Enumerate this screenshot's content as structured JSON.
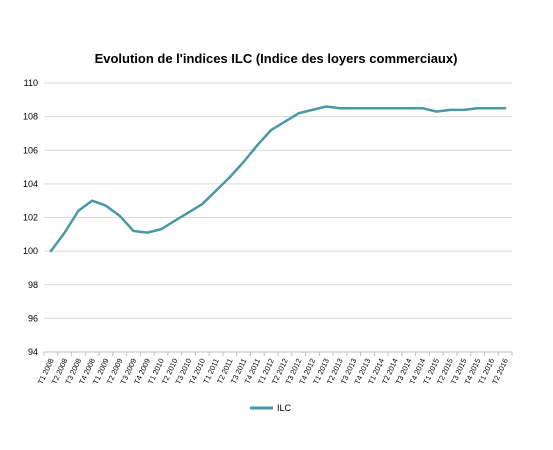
{
  "chart_data": {
    "type": "line",
    "title": "Evolution de l'indices ILC (Indice des loyers commerciaux)",
    "xlabel": "",
    "ylabel": "",
    "ylim": [
      94,
      110
    ],
    "yticks": [
      94,
      96,
      98,
      100,
      102,
      104,
      106,
      108,
      110
    ],
    "grid": true,
    "legend_position": "bottom",
    "categories": [
      "T1 2008",
      "T2 2008",
      "T3 2008",
      "T4 2008",
      "T1 2009",
      "T2 2009",
      "T3 2009",
      "T4 2009",
      "T1 2010",
      "T2 2010",
      "T3 2010",
      "T4 2010",
      "T1 2011",
      "T2 2011",
      "T3 2011",
      "T4 2011",
      "T1 2012",
      "T2 2012",
      "T3 2012",
      "T4 2012",
      "T1 2013",
      "T2 2013",
      "T3 2013",
      "T4 2013",
      "T1 2014",
      "T2 2014",
      "T3 2014",
      "T4 2014",
      "T1 2015",
      "T2 2015",
      "T3 2015",
      "T4 2015",
      "T1 2016",
      "T2 2016"
    ],
    "series": [
      {
        "name": "ILC",
        "color": "#4a97a8",
        "values": [
          100.0,
          101.1,
          102.4,
          103.0,
          102.7,
          102.1,
          101.2,
          101.1,
          101.3,
          101.8,
          102.3,
          102.8,
          103.6,
          104.4,
          105.3,
          106.3,
          107.2,
          107.7,
          108.2,
          108.4,
          108.6,
          108.5,
          108.5,
          108.5,
          108.5,
          108.5,
          108.5,
          108.5,
          108.3,
          108.4,
          108.4,
          108.5,
          108.5,
          108.5
        ]
      }
    ]
  }
}
